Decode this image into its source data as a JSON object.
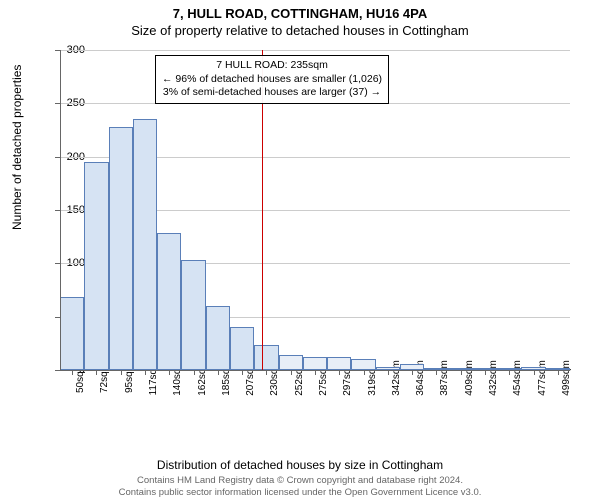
{
  "title_main": "7, HULL ROAD, COTTINGHAM, HU16 4PA",
  "title_sub": "Size of property relative to detached houses in Cottingham",
  "y_axis_label": "Number of detached properties",
  "x_axis_label": "Distribution of detached houses by size in Cottingham",
  "chart": {
    "type": "histogram",
    "bar_fill": "#d6e3f3",
    "bar_stroke": "#5a7fb8",
    "bar_fill_right": "#e8eef7",
    "background": "#ffffff",
    "grid_color": "#cccccc",
    "axis_color": "#666666",
    "marker_color": "#cc0000",
    "ylim": [
      0,
      300
    ],
    "ytick_step": 50,
    "x_categories": [
      "50sqm",
      "72sqm",
      "95sqm",
      "117sqm",
      "140sqm",
      "162sqm",
      "185sqm",
      "207sqm",
      "230sqm",
      "252sqm",
      "275sqm",
      "297sqm",
      "319sqm",
      "342sqm",
      "364sqm",
      "387sqm",
      "409sqm",
      "432sqm",
      "454sqm",
      "477sqm",
      "499sqm"
    ],
    "values": [
      68,
      195,
      228,
      235,
      128,
      103,
      60,
      40,
      23,
      14,
      12,
      12,
      10,
      3,
      6,
      2,
      2,
      0,
      0,
      3,
      0
    ],
    "marker_index_after": 8,
    "bar_width_ratio": 1.0
  },
  "info_box": {
    "line1": "7 HULL ROAD: 235sqm",
    "line2": "← 96% of detached houses are smaller (1,026)",
    "line3": "3% of semi-detached houses are larger (37) →"
  },
  "footer": {
    "line1": "Contains HM Land Registry data © Crown copyright and database right 2024.",
    "line2": "Contains public sector information licensed under the Open Government Licence v3.0."
  }
}
